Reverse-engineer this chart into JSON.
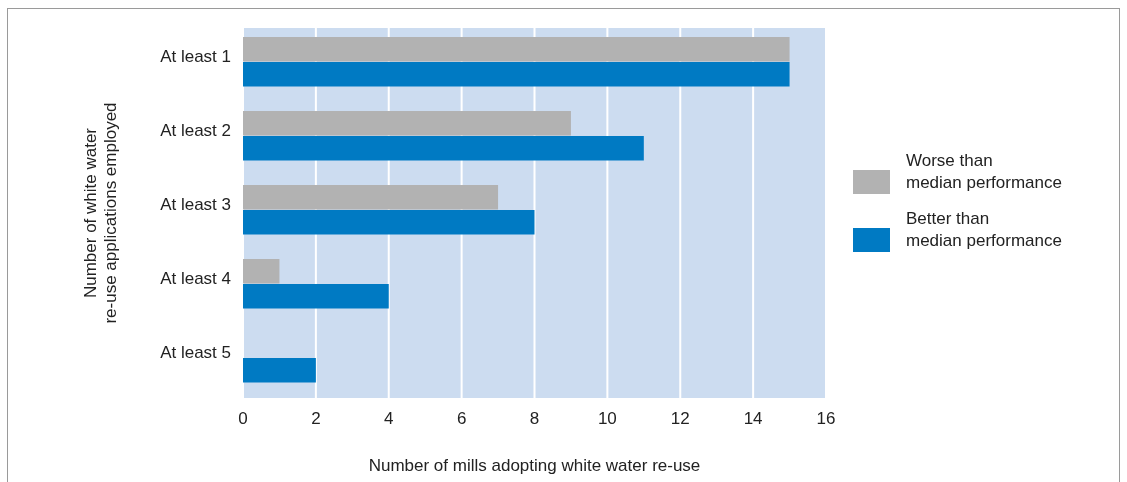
{
  "chart_data": {
    "type": "bar",
    "orientation": "horizontal",
    "xlabel": "Number of mills adopting white water re-use",
    "ylabel": "Number of white water\nre-use applications employed",
    "categories": [
      "At least 1",
      "At least 2",
      "At least 3",
      "At least 4",
      "At least 5"
    ],
    "series": [
      {
        "name": "Worse than\nmedian performance",
        "color": "#b2b2b2",
        "values": [
          15,
          9,
          7,
          1,
          0
        ]
      },
      {
        "name": "Better than\nmedian performance",
        "color": "#007ac3",
        "values": [
          15,
          11,
          8,
          4,
          2
        ]
      }
    ],
    "xlim": [
      0,
      16
    ],
    "xticks": [
      0,
      2,
      4,
      6,
      8,
      10,
      12,
      14,
      16
    ],
    "grid": "x",
    "legend": "right"
  }
}
